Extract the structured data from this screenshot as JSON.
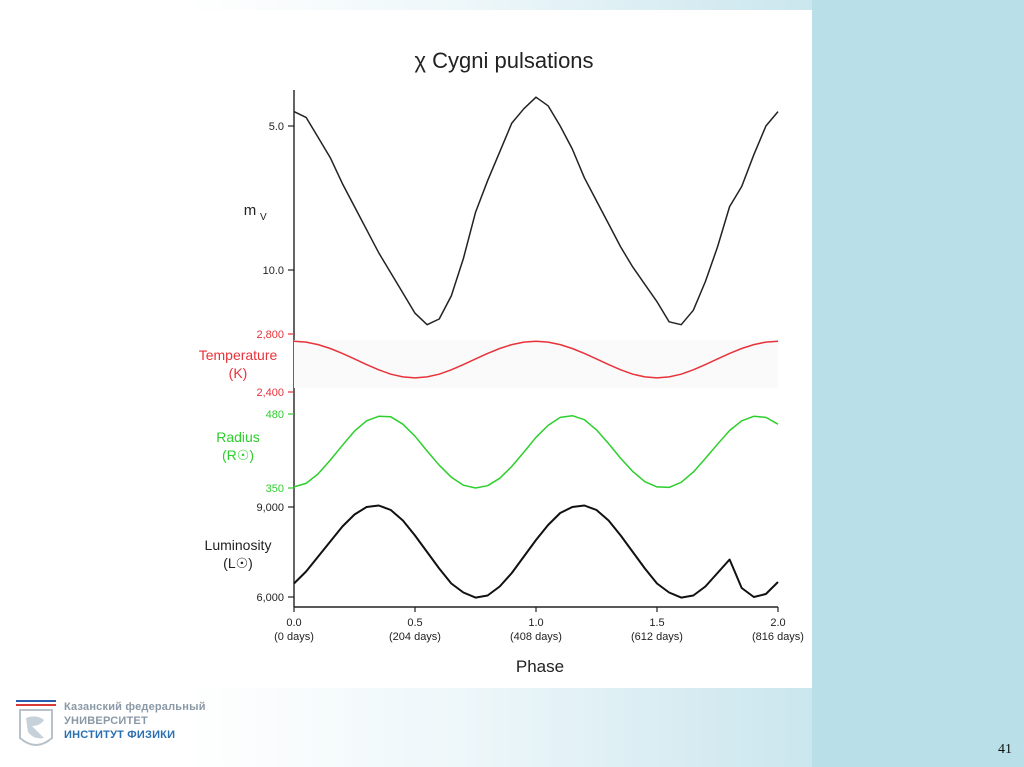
{
  "slide": {
    "page_number": "41",
    "logo": {
      "line1": "Казанский федеральный",
      "line2": "УНИВЕРСИТЕТ",
      "line3": "ИНСТИТУТ ФИЗИКИ"
    }
  },
  "chart_data": {
    "type": "line",
    "title": "χ Cygni pulsations",
    "xlabel": "Phase",
    "x_ticks": [
      {
        "phase": "0.0",
        "days": "(0 days)",
        "value": 0.0
      },
      {
        "phase": "0.5",
        "days": "(204 days)",
        "value": 0.5
      },
      {
        "phase": "1.0",
        "days": "(408 days)",
        "value": 1.0
      },
      {
        "phase": "1.5",
        "days": "(612 days)",
        "value": 1.5
      },
      {
        "phase": "2.0",
        "days": "(816 days)",
        "value": 2.0
      }
    ],
    "xlim": [
      0,
      2
    ],
    "panels": [
      {
        "name": "mV",
        "label_main": "m",
        "label_sub": "V",
        "color": "#222222",
        "inverted": true,
        "ylim": [
          4.5,
          12.0
        ],
        "tick_labels": [
          "5.0",
          "10.0"
        ],
        "tick_values": [
          5.0,
          10.0
        ],
        "x": [
          0.0,
          0.05,
          0.1,
          0.15,
          0.2,
          0.25,
          0.3,
          0.35,
          0.4,
          0.45,
          0.5,
          0.55,
          0.6,
          0.65,
          0.7,
          0.75,
          0.8,
          0.85,
          0.9,
          0.95,
          1.0,
          1.05,
          1.1,
          1.15,
          1.2,
          1.25,
          1.3,
          1.35,
          1.4,
          1.45,
          1.5,
          1.55,
          1.6,
          1.65,
          1.7,
          1.75,
          1.8,
          1.85,
          1.9,
          1.95,
          2.0
        ],
        "values": [
          4.5,
          4.7,
          5.4,
          6.1,
          7.0,
          7.8,
          8.6,
          9.4,
          10.1,
          10.8,
          11.5,
          11.9,
          11.7,
          10.9,
          9.6,
          8.0,
          6.9,
          5.9,
          4.9,
          4.4,
          4.0,
          4.3,
          5.0,
          5.8,
          6.8,
          7.6,
          8.4,
          9.2,
          9.9,
          10.5,
          11.1,
          11.8,
          11.9,
          11.4,
          10.4,
          9.2,
          7.8,
          7.1,
          6.0,
          5.0,
          4.5
        ]
      },
      {
        "name": "Temperature",
        "label_main": "Temperature",
        "label_sub": "(K)",
        "color": "#e8323a",
        "ylim": [
          2400,
          2800
        ],
        "tick_labels": [
          "2,800",
          "2,400"
        ],
        "tick_values": [
          2800,
          2400
        ],
        "x": [
          0.0,
          0.05,
          0.1,
          0.15,
          0.2,
          0.25,
          0.3,
          0.35,
          0.4,
          0.45,
          0.5,
          0.55,
          0.6,
          0.65,
          0.7,
          0.75,
          0.8,
          0.85,
          0.9,
          0.95,
          1.0,
          1.05,
          1.1,
          1.15,
          1.2,
          1.25,
          1.3,
          1.35,
          1.4,
          1.45,
          1.5,
          1.55,
          1.6,
          1.65,
          1.7,
          1.75,
          1.8,
          1.85,
          1.9,
          1.95,
          2.0
        ],
        "values": [
          2750,
          2744,
          2727,
          2700,
          2666,
          2628,
          2589,
          2553,
          2523,
          2504,
          2497,
          2504,
          2523,
          2553,
          2589,
          2628,
          2666,
          2700,
          2727,
          2744,
          2750,
          2744,
          2727,
          2700,
          2666,
          2628,
          2589,
          2553,
          2523,
          2504,
          2497,
          2504,
          2523,
          2553,
          2589,
          2628,
          2666,
          2700,
          2727,
          2744,
          2750
        ]
      },
      {
        "name": "Radius",
        "label_main": "Radius",
        "label_sub": "(R☉)",
        "color": "#2ccf2c",
        "ylim": [
          350,
          480
        ],
        "tick_labels": [
          "480",
          "350"
        ],
        "tick_values": [
          480,
          350
        ],
        "x": [
          0.0,
          0.05,
          0.1,
          0.15,
          0.2,
          0.25,
          0.3,
          0.35,
          0.4,
          0.45,
          0.5,
          0.55,
          0.6,
          0.65,
          0.7,
          0.75,
          0.8,
          0.85,
          0.9,
          0.95,
          1.0,
          1.05,
          1.1,
          1.15,
          1.2,
          1.25,
          1.3,
          1.35,
          1.4,
          1.45,
          1.5,
          1.55,
          1.6,
          1.65,
          1.7,
          1.75,
          1.8,
          1.85,
          1.9,
          1.95,
          2.0
        ],
        "values": [
          352,
          358,
          375,
          399,
          425,
          450,
          468,
          476,
          475,
          462,
          441,
          415,
          390,
          369,
          355,
          350,
          354,
          367,
          388,
          413,
          439,
          460,
          474,
          477,
          470,
          452,
          428,
          402,
          379,
          361,
          352,
          351,
          360,
          378,
          402,
          427,
          451,
          468,
          476,
          474,
          462
        ]
      },
      {
        "name": "Luminosity",
        "label_main": "Luminosity",
        "label_sub": "(L☉)",
        "color": "#111111",
        "ylim": [
          6000,
          9000
        ],
        "tick_labels": [
          "9,000",
          "6,000"
        ],
        "tick_values": [
          9000,
          6000
        ],
        "x": [
          0.0,
          0.05,
          0.1,
          0.15,
          0.2,
          0.25,
          0.3,
          0.35,
          0.4,
          0.45,
          0.5,
          0.55,
          0.6,
          0.65,
          0.7,
          0.75,
          0.8,
          0.85,
          0.9,
          0.95,
          1.0,
          1.05,
          1.1,
          1.15,
          1.2,
          1.25,
          1.3,
          1.35,
          1.4,
          1.45,
          1.5,
          1.55,
          1.6,
          1.65,
          1.7,
          1.75,
          1.8,
          1.85,
          1.9,
          1.95,
          2.0
        ],
        "values": [
          6450,
          6850,
          7350,
          7850,
          8350,
          8750,
          9000,
          9050,
          8900,
          8550,
          8050,
          7500,
          6950,
          6450,
          6150,
          5980,
          6050,
          6350,
          6800,
          7350,
          7900,
          8400,
          8800,
          9000,
          9050,
          8900,
          8550,
          8050,
          7500,
          6950,
          6450,
          6150,
          5980,
          6050,
          6350,
          6800,
          7250,
          6300,
          6000,
          6100,
          6500
        ]
      }
    ]
  }
}
